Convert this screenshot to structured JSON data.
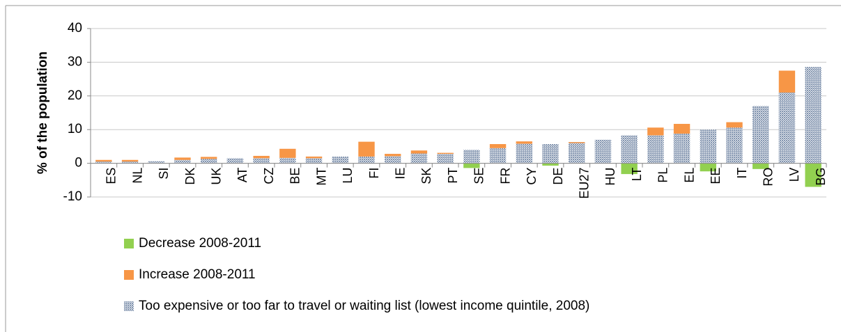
{
  "chart_data": {
    "type": "stacked-bar",
    "ylabel": "% of the population",
    "categories": [
      "ES",
      "NL",
      "SI",
      "DK",
      "UK",
      "AT",
      "CZ",
      "BE",
      "MT",
      "LU",
      "FI",
      "IE",
      "SK",
      "PT",
      "SE",
      "FR",
      "CY",
      "DE",
      "EU27",
      "HU",
      "LT",
      "PL",
      "EL",
      "EE",
      "IT",
      "RO",
      "LV",
      "BG"
    ],
    "series": [
      {
        "name": "Decrease 2008-2011",
        "color": "#92d050",
        "values": [
          0,
          0,
          0,
          0,
          0,
          0,
          0,
          0,
          0,
          0,
          0,
          0,
          0,
          0,
          -1.4,
          0,
          0,
          -0.7,
          0,
          0,
          -3.2,
          0,
          0,
          -2.4,
          0,
          -1.7,
          0,
          -7.0
        ]
      },
      {
        "name": "Increase 2008-2011",
        "color": "#f79646",
        "values": [
          0.5,
          0.5,
          0,
          0.7,
          0.6,
          0,
          0.7,
          2.7,
          0.5,
          0,
          4.4,
          0.7,
          0.9,
          0.3,
          0,
          1.2,
          0.7,
          0,
          0.3,
          0,
          0,
          2.3,
          2.9,
          0,
          1.6,
          0,
          6.5,
          0
        ]
      },
      {
        "name": "Too expensive or too far to travel or waiting list  (lowest income quintile, 2008)",
        "color": "#8496b0",
        "pattern": true,
        "values": [
          0.5,
          0.5,
          0.6,
          1.0,
          1.3,
          1.5,
          1.5,
          1.6,
          1.5,
          2.0,
          2.0,
          2.1,
          2.9,
          2.8,
          4.0,
          4.5,
          5.8,
          5.7,
          6.0,
          7.0,
          8.3,
          8.3,
          8.8,
          10.0,
          10.6,
          17.0,
          21.0,
          28.6
        ]
      }
    ],
    "ylim": [
      -10,
      40
    ],
    "yticks": [
      -10,
      0,
      10,
      20,
      30,
      40
    ],
    "grid": true,
    "legend": "bottom"
  }
}
